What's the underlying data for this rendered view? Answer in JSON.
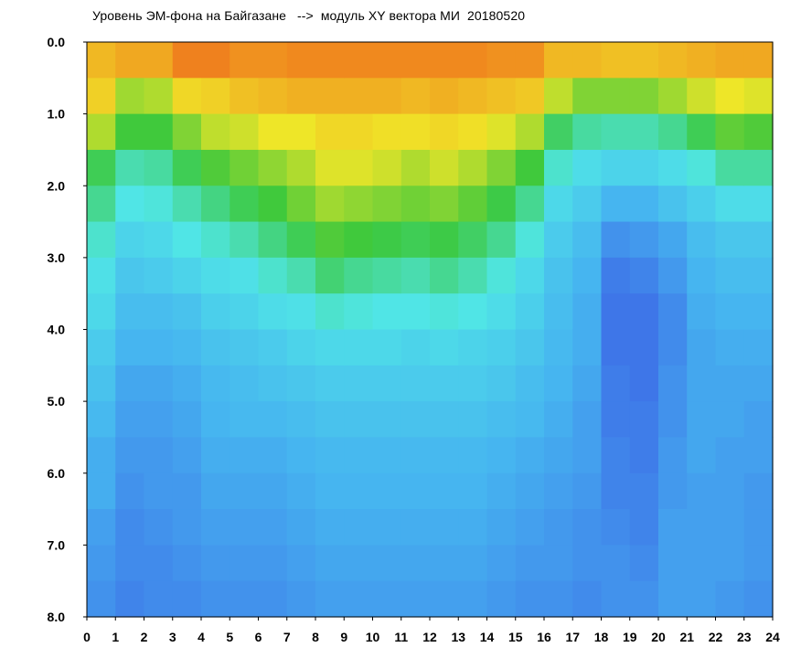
{
  "window": {
    "title": "Уровень ЭМ-фона на Байгазане   -->  модуль XY вектора МИ  20180520"
  },
  "chart_data": {
    "type": "heatmap",
    "title": "Уровень ЭМ-фона на Байгазане   -->  модуль XY вектора МИ  20180520",
    "xlabel": "",
    "ylabel": "",
    "xlim": [
      0,
      24
    ],
    "ylim": [
      0,
      8
    ],
    "y_inverted": true,
    "x_ticks": [
      "0",
      "1",
      "2",
      "3",
      "4",
      "5",
      "6",
      "7",
      "8",
      "9",
      "10",
      "11",
      "12",
      "13",
      "14",
      "15",
      "16",
      "17",
      "18",
      "19",
      "20",
      "21",
      "22",
      "23",
      "24"
    ],
    "y_ticks": [
      "0.0",
      "1.0",
      "2.0",
      "3.0",
      "4.0",
      "5.0",
      "6.0",
      "7.0",
      "8.0"
    ],
    "colormap": [
      "#1a1ac8",
      "#3c64e6",
      "#46b4f0",
      "#50e6e6",
      "#3cc83c",
      "#f0e628",
      "#f08c1e",
      "#e6321e"
    ],
    "grid": false,
    "x_step_h": 1,
    "y_step": 0.5,
    "rows_y": [
      0.25,
      0.75,
      1.25,
      1.75,
      2.25,
      2.75,
      3.25,
      3.75,
      4.25,
      4.75,
      5.25,
      5.75,
      6.25,
      6.75,
      7.25,
      7.75
    ],
    "columns_x": [
      0.5,
      1.5,
      2.5,
      3.5,
      4.5,
      5.5,
      6.5,
      7.5,
      8.5,
      9.5,
      10.5,
      11.5,
      12.5,
      13.5,
      14.5,
      15.5,
      16.5,
      17.5,
      18.5,
      19.5,
      20.5,
      21.5,
      22.5,
      23.5
    ],
    "values": [
      [
        6.3,
        6.0,
        5.3,
        4.4,
        4.0,
        3.6,
        3.3,
        3.1,
        2.8,
        2.6,
        2.4,
        2.2,
        2.2,
        2.0,
        1.9,
        1.8
      ],
      [
        6.5,
        5.2,
        4.6,
        3.8,
        3.4,
        3.0,
        2.7,
        2.5,
        2.3,
        2.1,
        2.0,
        1.9,
        1.8,
        1.7,
        1.7,
        1.6
      ],
      [
        6.5,
        5.3,
        4.6,
        3.9,
        3.5,
        3.1,
        2.8,
        2.5,
        2.3,
        2.1,
        2.0,
        1.9,
        1.9,
        1.8,
        1.7,
        1.7
      ],
      [
        7.0,
        5.9,
        5.0,
        4.4,
        3.8,
        3.4,
        3.0,
        2.6,
        2.4,
        2.2,
        2.1,
        2.0,
        1.9,
        1.9,
        1.8,
        1.7
      ],
      [
        7.0,
        6.0,
        5.4,
        4.7,
        4.1,
        3.6,
        3.2,
        2.9,
        2.6,
        2.4,
        2.3,
        2.2,
        2.1,
        2.0,
        1.9,
        1.8
      ],
      [
        6.8,
        6.2,
        5.5,
        4.9,
        4.4,
        3.8,
        3.3,
        3.0,
        2.7,
        2.5,
        2.4,
        2.2,
        2.1,
        2.0,
        1.9,
        1.8
      ],
      [
        6.8,
        6.3,
        5.7,
        5.1,
        4.6,
        4.1,
        3.6,
        3.2,
        2.8,
        2.6,
        2.4,
        2.2,
        2.1,
        2.0,
        1.9,
        1.8
      ],
      [
        6.9,
        6.4,
        5.7,
        5.3,
        4.9,
        4.4,
        3.8,
        3.3,
        3.0,
        2.7,
        2.5,
        2.3,
        2.2,
        2.1,
        2.0,
        1.9
      ],
      [
        6.9,
        6.4,
        5.9,
        5.6,
        5.2,
        4.7,
        4.2,
        3.6,
        3.1,
        2.8,
        2.6,
        2.4,
        2.3,
        2.2,
        2.1,
        2.0
      ],
      [
        6.9,
        6.4,
        5.9,
        5.6,
        5.1,
        4.6,
        4.0,
        3.5,
        3.1,
        2.8,
        2.6,
        2.4,
        2.3,
        2.2,
        2.1,
        2.0
      ],
      [
        6.9,
        6.4,
        5.8,
        5.5,
        5.0,
        4.5,
        3.9,
        3.4,
        3.1,
        2.8,
        2.6,
        2.4,
        2.3,
        2.2,
        2.1,
        2.0
      ],
      [
        6.9,
        6.3,
        5.8,
        5.3,
        4.9,
        4.4,
        3.8,
        3.4,
        3.0,
        2.8,
        2.6,
        2.4,
        2.3,
        2.2,
        2.1,
        2.0
      ],
      [
        6.9,
        6.4,
        5.9,
        5.5,
        5.0,
        4.5,
        4.0,
        3.5,
        3.1,
        2.8,
        2.6,
        2.4,
        2.3,
        2.2,
        2.1,
        2.0
      ],
      [
        6.9,
        6.3,
        5.8,
        5.3,
        4.8,
        4.3,
        3.8,
        3.4,
        3.0,
        2.8,
        2.6,
        2.4,
        2.3,
        2.2,
        2.1,
        2.0
      ],
      [
        6.8,
        6.2,
        5.6,
        5.0,
        4.5,
        4.0,
        3.5,
        3.2,
        2.9,
        2.7,
        2.5,
        2.3,
        2.2,
        2.1,
        2.0,
        1.9
      ],
      [
        6.8,
        6.1,
        5.3,
        4.6,
        4.0,
        3.5,
        3.1,
        2.9,
        2.7,
        2.5,
        2.4,
        2.2,
        2.1,
        2.0,
        1.9,
        1.8
      ],
      [
        6.3,
        5.4,
        4.3,
        3.6,
        3.1,
        2.8,
        2.6,
        2.5,
        2.4,
        2.3,
        2.2,
        2.1,
        2.0,
        1.9,
        1.9,
        1.8
      ],
      [
        6.3,
        5.0,
        3.9,
        3.2,
        2.8,
        2.5,
        2.3,
        2.2,
        2.2,
        2.1,
        2.0,
        2.0,
        1.9,
        1.8,
        1.8,
        1.7
      ],
      [
        6.2,
        5.0,
        3.8,
        3.0,
        2.3,
        1.8,
        1.5,
        1.4,
        1.4,
        1.5,
        1.5,
        1.6,
        1.6,
        1.7,
        1.8,
        1.8
      ],
      [
        6.2,
        5.0,
        3.8,
        3.0,
        2.3,
        1.9,
        1.6,
        1.4,
        1.4,
        1.4,
        1.5,
        1.5,
        1.6,
        1.6,
        1.7,
        1.8
      ],
      [
        6.3,
        5.2,
        4.0,
        3.2,
        2.6,
        2.1,
        1.9,
        1.7,
        1.7,
        1.8,
        1.8,
        1.9,
        1.9,
        2.0,
        2.0,
        2.0
      ],
      [
        6.4,
        5.5,
        4.4,
        3.5,
        2.9,
        2.5,
        2.3,
        2.2,
        2.1,
        2.1,
        2.1,
        2.1,
        2.0,
        2.0,
        2.0,
        2.0
      ],
      [
        6.5,
        5.7,
        4.8,
        3.9,
        3.2,
        2.7,
        2.5,
        2.3,
        2.2,
        2.1,
        2.1,
        2.0,
        2.0,
        2.0,
        2.0,
        1.9
      ],
      [
        6.5,
        5.6,
        4.7,
        3.9,
        3.2,
        2.7,
        2.5,
        2.3,
        2.2,
        2.1,
        2.0,
        2.0,
        1.9,
        1.9,
        1.9,
        1.8
      ]
    ]
  }
}
